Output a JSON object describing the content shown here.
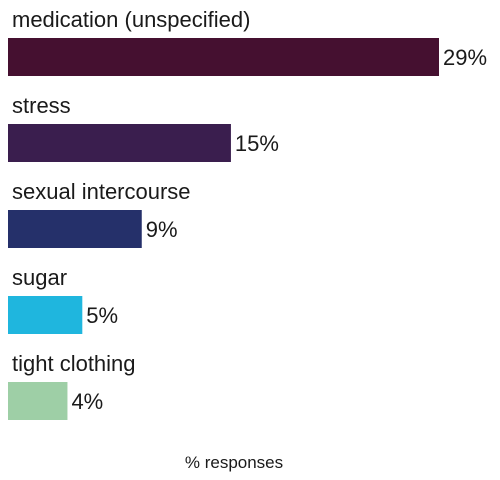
{
  "chart_data": {
    "type": "bar",
    "orientation": "horizontal",
    "categories": [
      "medication (unspecified)",
      "stress",
      "sexual intercourse",
      "sugar",
      "tight clothing"
    ],
    "values": [
      29,
      15,
      9,
      5,
      4
    ],
    "value_labels": [
      "29%",
      "15%",
      "9%",
      "5%",
      "4%"
    ],
    "colors": [
      "#451030",
      "#3a1e4e",
      "#25306a",
      "#1fb6de",
      "#9ecfa6"
    ],
    "xlabel": "% responses",
    "xlim": [
      0,
      29
    ],
    "grid": false,
    "legend": "none"
  }
}
